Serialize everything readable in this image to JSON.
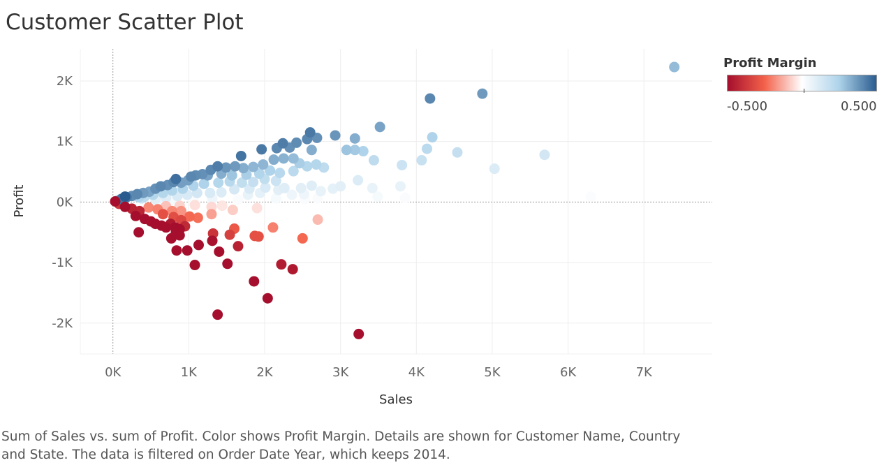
{
  "title": "Customer Scatter Plot",
  "caption": "Sum of Sales vs. sum of Profit.  Color shows Profit Margin.  Details are shown for Customer Name, Country and State. The data is filtered on Order Date Year, which keeps 2014.",
  "legend": {
    "title": "Profit Margin",
    "min_label": "-0.500",
    "max_label": "0.500",
    "colors": {
      "negative": "#a50f2d",
      "mid_negative": "#f4624a",
      "neutral": "#ffffff",
      "mid_positive": "#aed3ea",
      "positive": "#2a5c8f"
    }
  },
  "chart_data": {
    "type": "scatter",
    "title": "Customer Scatter Plot",
    "xlabel": "Sales",
    "ylabel": "Profit",
    "xlim": [
      -430,
      7900
    ],
    "ylim": [
      -2510,
      2530
    ],
    "x_ticks": [
      0,
      1000,
      2000,
      3000,
      4000,
      5000,
      6000,
      7000
    ],
    "x_tick_labels": [
      "0K",
      "1K",
      "2K",
      "3K",
      "4K",
      "5K",
      "6K",
      "7K"
    ],
    "y_ticks": [
      -2000,
      -1000,
      0,
      1000,
      2000
    ],
    "y_tick_labels": [
      "-2K",
      "-1K",
      "0K",
      "1K",
      "2K"
    ],
    "color_field": "Profit Margin",
    "color_range": [
      -0.5,
      0.5
    ],
    "grid": true,
    "zero_lines": "dotted",
    "points": [
      {
        "x": 7400,
        "y": 2230,
        "m": 0.3
      },
      {
        "x": 4180,
        "y": 1710,
        "m": 0.41
      },
      {
        "x": 4870,
        "y": 1790,
        "m": 0.37
      },
      {
        "x": 3520,
        "y": 1240,
        "m": 0.35
      },
      {
        "x": 2930,
        "y": 1100,
        "m": 0.38
      },
      {
        "x": 3190,
        "y": 1050,
        "m": 0.33
      },
      {
        "x": 2600,
        "y": 1150,
        "m": 0.44
      },
      {
        "x": 2560,
        "y": 1040,
        "m": 0.41
      },
      {
        "x": 2690,
        "y": 1060,
        "m": 0.39
      },
      {
        "x": 2420,
        "y": 980,
        "m": 0.4
      },
      {
        "x": 2240,
        "y": 970,
        "m": 0.43
      },
      {
        "x": 1960,
        "y": 870,
        "m": 0.44
      },
      {
        "x": 1690,
        "y": 760,
        "m": 0.45
      },
      {
        "x": 2160,
        "y": 890,
        "m": 0.41
      },
      {
        "x": 2330,
        "y": 900,
        "m": 0.39
      },
      {
        "x": 2620,
        "y": 860,
        "m": 0.33
      },
      {
        "x": 3080,
        "y": 860,
        "m": 0.28
      },
      {
        "x": 3190,
        "y": 860,
        "m": 0.27
      },
      {
        "x": 3300,
        "y": 840,
        "m": 0.25
      },
      {
        "x": 3440,
        "y": 690,
        "m": 0.2
      },
      {
        "x": 3810,
        "y": 610,
        "m": 0.16
      },
      {
        "x": 4140,
        "y": 880,
        "m": 0.21
      },
      {
        "x": 4210,
        "y": 1070,
        "m": 0.25
      },
      {
        "x": 4540,
        "y": 820,
        "m": 0.18
      },
      {
        "x": 4070,
        "y": 690,
        "m": 0.17
      },
      {
        "x": 5030,
        "y": 550,
        "m": 0.11
      },
      {
        "x": 5690,
        "y": 780,
        "m": 0.14
      },
      {
        "x": 6300,
        "y": 90,
        "m": 0.015
      },
      {
        "x": 3850,
        "y": 70,
        "m": 0.02
      },
      {
        "x": 3790,
        "y": 260,
        "m": 0.07
      },
      {
        "x": 3420,
        "y": 230,
        "m": 0.07
      },
      {
        "x": 3490,
        "y": 90,
        "m": 0.03
      },
      {
        "x": 3230,
        "y": 360,
        "m": 0.11
      },
      {
        "x": 3000,
        "y": 260,
        "m": 0.09
      },
      {
        "x": 2900,
        "y": 220,
        "m": 0.08
      },
      {
        "x": 2780,
        "y": 570,
        "m": 0.2
      },
      {
        "x": 2680,
        "y": 620,
        "m": 0.23
      },
      {
        "x": 2560,
        "y": 590,
        "m": 0.23
      },
      {
        "x": 2460,
        "y": 640,
        "m": 0.26
      },
      {
        "x": 2380,
        "y": 720,
        "m": 0.3
      },
      {
        "x": 2250,
        "y": 720,
        "m": 0.32
      },
      {
        "x": 2120,
        "y": 700,
        "m": 0.33
      },
      {
        "x": 1980,
        "y": 620,
        "m": 0.31
      },
      {
        "x": 1850,
        "y": 580,
        "m": 0.31
      },
      {
        "x": 1720,
        "y": 560,
        "m": 0.33
      },
      {
        "x": 1610,
        "y": 590,
        "m": 0.37
      },
      {
        "x": 1490,
        "y": 570,
        "m": 0.38
      },
      {
        "x": 1380,
        "y": 590,
        "m": 0.43
      },
      {
        "x": 1290,
        "y": 530,
        "m": 0.41
      },
      {
        "x": 1180,
        "y": 460,
        "m": 0.39
      },
      {
        "x": 1090,
        "y": 440,
        "m": 0.4
      },
      {
        "x": 990,
        "y": 360,
        "m": 0.36
      },
      {
        "x": 900,
        "y": 320,
        "m": 0.36
      },
      {
        "x": 800,
        "y": 330,
        "m": 0.41
      },
      {
        "x": 720,
        "y": 280,
        "m": 0.39
      },
      {
        "x": 630,
        "y": 260,
        "m": 0.41
      },
      {
        "x": 560,
        "y": 220,
        "m": 0.39
      },
      {
        "x": 480,
        "y": 170,
        "m": 0.35
      },
      {
        "x": 400,
        "y": 150,
        "m": 0.37
      },
      {
        "x": 320,
        "y": 130,
        "m": 0.41
      },
      {
        "x": 250,
        "y": 100,
        "m": 0.4
      },
      {
        "x": 180,
        "y": 80,
        "m": 0.44
      },
      {
        "x": 110,
        "y": 50,
        "m": 0.45
      },
      {
        "x": 60,
        "y": 20,
        "m": 0.33
      },
      {
        "x": 160,
        "y": 90,
        "m": 0.5
      },
      {
        "x": 830,
        "y": 380,
        "m": 0.46
      },
      {
        "x": 1030,
        "y": 420,
        "m": 0.41
      },
      {
        "x": 1250,
        "y": 440,
        "m": 0.35
      },
      {
        "x": 1430,
        "y": 470,
        "m": 0.33
      },
      {
        "x": 1570,
        "y": 440,
        "m": 0.28
      },
      {
        "x": 1760,
        "y": 450,
        "m": 0.26
      },
      {
        "x": 1930,
        "y": 470,
        "m": 0.24
      },
      {
        "x": 2070,
        "y": 520,
        "m": 0.25
      },
      {
        "x": 2200,
        "y": 480,
        "m": 0.22
      },
      {
        "x": 2380,
        "y": 510,
        "m": 0.21
      },
      {
        "x": 2150,
        "y": 350,
        "m": 0.16
      },
      {
        "x": 2000,
        "y": 380,
        "m": 0.19
      },
      {
        "x": 1850,
        "y": 330,
        "m": 0.18
      },
      {
        "x": 1700,
        "y": 320,
        "m": 0.19
      },
      {
        "x": 1540,
        "y": 340,
        "m": 0.22
      },
      {
        "x": 1390,
        "y": 320,
        "m": 0.23
      },
      {
        "x": 1200,
        "y": 300,
        "m": 0.25
      },
      {
        "x": 1060,
        "y": 270,
        "m": 0.25
      },
      {
        "x": 920,
        "y": 220,
        "m": 0.24
      },
      {
        "x": 780,
        "y": 190,
        "m": 0.24
      },
      {
        "x": 660,
        "y": 150,
        "m": 0.23
      },
      {
        "x": 530,
        "y": 120,
        "m": 0.23
      },
      {
        "x": 420,
        "y": 90,
        "m": 0.21
      },
      {
        "x": 340,
        "y": 80,
        "m": 0.24
      },
      {
        "x": 1600,
        "y": 210,
        "m": 0.13
      },
      {
        "x": 1800,
        "y": 220,
        "m": 0.12
      },
      {
        "x": 2010,
        "y": 240,
        "m": 0.12
      },
      {
        "x": 2260,
        "y": 230,
        "m": 0.1
      },
      {
        "x": 2480,
        "y": 230,
        "m": 0.09
      },
      {
        "x": 2620,
        "y": 270,
        "m": 0.1
      },
      {
        "x": 2740,
        "y": 180,
        "m": 0.07
      },
      {
        "x": 2520,
        "y": 130,
        "m": 0.05
      },
      {
        "x": 2360,
        "y": 120,
        "m": 0.05
      },
      {
        "x": 2180,
        "y": 200,
        "m": 0.09
      },
      {
        "x": 1940,
        "y": 150,
        "m": 0.08
      },
      {
        "x": 1780,
        "y": 120,
        "m": 0.07
      },
      {
        "x": 1430,
        "y": 160,
        "m": 0.11
      },
      {
        "x": 1280,
        "y": 150,
        "m": 0.12
      },
      {
        "x": 1110,
        "y": 150,
        "m": 0.14
      },
      {
        "x": 980,
        "y": 120,
        "m": 0.12
      },
      {
        "x": 850,
        "y": 100,
        "m": 0.12
      },
      {
        "x": 700,
        "y": 70,
        "m": 0.1
      },
      {
        "x": 560,
        "y": 50,
        "m": 0.09
      },
      {
        "x": 1310,
        "y": 60,
        "m": 0.05
      },
      {
        "x": 1650,
        "y": 40,
        "m": 0.02
      },
      {
        "x": 2150,
        "y": 60,
        "m": 0.03
      },
      {
        "x": 2700,
        "y": 60,
        "m": 0.02
      },
      {
        "x": 2530,
        "y": 50,
        "m": 0.02
      },
      {
        "x": 1070,
        "y": 20,
        "m": 0.02
      },
      {
        "x": 780,
        "y": 20,
        "m": 0.03
      },
      {
        "x": 600,
        "y": 30,
        "m": 0.05
      },
      {
        "x": 380,
        "y": 60,
        "m": 0.16
      },
      {
        "x": 140,
        "y": 20,
        "m": 0.14
      },
      {
        "x": 1080,
        "y": -50,
        "m": -0.05
      },
      {
        "x": 880,
        "y": -60,
        "m": -0.07
      },
      {
        "x": 700,
        "y": -70,
        "m": -0.1
      },
      {
        "x": 590,
        "y": -120,
        "m": -0.2
      },
      {
        "x": 470,
        "y": -90,
        "m": -0.19
      },
      {
        "x": 350,
        "y": -150,
        "m": -0.43
      },
      {
        "x": 250,
        "y": -110,
        "m": -0.44
      },
      {
        "x": 160,
        "y": -80,
        "m": -0.5
      },
      {
        "x": 80,
        "y": -30,
        "m": -0.38
      },
      {
        "x": 30,
        "y": 10,
        "m": -0.5
      },
      {
        "x": 300,
        "y": -230,
        "m": -0.5
      },
      {
        "x": 420,
        "y": -280,
        "m": -0.5
      },
      {
        "x": 500,
        "y": -320,
        "m": -0.5
      },
      {
        "x": 560,
        "y": -360,
        "m": -0.5
      },
      {
        "x": 640,
        "y": -390,
        "m": -0.5
      },
      {
        "x": 700,
        "y": -420,
        "m": -0.5
      },
      {
        "x": 760,
        "y": -360,
        "m": -0.47
      },
      {
        "x": 820,
        "y": -420,
        "m": -0.5
      },
      {
        "x": 880,
        "y": -450,
        "m": -0.5
      },
      {
        "x": 950,
        "y": -400,
        "m": -0.42
      },
      {
        "x": 1010,
        "y": -240,
        "m": -0.24
      },
      {
        "x": 900,
        "y": -300,
        "m": -0.33
      },
      {
        "x": 800,
        "y": -250,
        "m": -0.31
      },
      {
        "x": 660,
        "y": -200,
        "m": -0.3
      },
      {
        "x": 780,
        "y": -150,
        "m": -0.19
      },
      {
        "x": 900,
        "y": -150,
        "m": -0.17
      },
      {
        "x": 1120,
        "y": -260,
        "m": -0.23
      },
      {
        "x": 1300,
        "y": -200,
        "m": -0.15
      },
      {
        "x": 1580,
        "y": -130,
        "m": -0.08
      },
      {
        "x": 1900,
        "y": -100,
        "m": -0.05
      },
      {
        "x": 1440,
        "y": -60,
        "m": -0.04
      },
      {
        "x": 1300,
        "y": -80,
        "m": -0.06
      },
      {
        "x": 2700,
        "y": -290,
        "m": -0.11
      },
      {
        "x": 2500,
        "y": -600,
        "m": -0.24
      },
      {
        "x": 2110,
        "y": -420,
        "m": -0.2
      },
      {
        "x": 1920,
        "y": -570,
        "m": -0.3
      },
      {
        "x": 1870,
        "y": -560,
        "m": -0.3
      },
      {
        "x": 1600,
        "y": -440,
        "m": -0.28
      },
      {
        "x": 1540,
        "y": -540,
        "m": -0.35
      },
      {
        "x": 1320,
        "y": -520,
        "m": -0.39
      },
      {
        "x": 1310,
        "y": -640,
        "m": -0.49
      },
      {
        "x": 1130,
        "y": -710,
        "m": -0.5
      },
      {
        "x": 1400,
        "y": -820,
        "m": -0.5
      },
      {
        "x": 1650,
        "y": -730,
        "m": -0.44
      },
      {
        "x": 1510,
        "y": -1020,
        "m": -0.5
      },
      {
        "x": 1080,
        "y": -1040,
        "m": -0.5
      },
      {
        "x": 980,
        "y": -800,
        "m": -0.5
      },
      {
        "x": 840,
        "y": -800,
        "m": -0.5
      },
      {
        "x": 770,
        "y": -600,
        "m": -0.5
      },
      {
        "x": 830,
        "y": -500,
        "m": -0.5
      },
      {
        "x": 880,
        "y": -550,
        "m": -0.5
      },
      {
        "x": 340,
        "y": -500,
        "m": -0.5
      },
      {
        "x": 2220,
        "y": -1030,
        "m": -0.46
      },
      {
        "x": 2370,
        "y": -1110,
        "m": -0.47
      },
      {
        "x": 1860,
        "y": -1310,
        "m": -0.5
      },
      {
        "x": 2040,
        "y": -1590,
        "m": -0.5
      },
      {
        "x": 1380,
        "y": -1860,
        "m": -0.5
      },
      {
        "x": 3240,
        "y": -2180,
        "m": -0.5
      }
    ]
  }
}
